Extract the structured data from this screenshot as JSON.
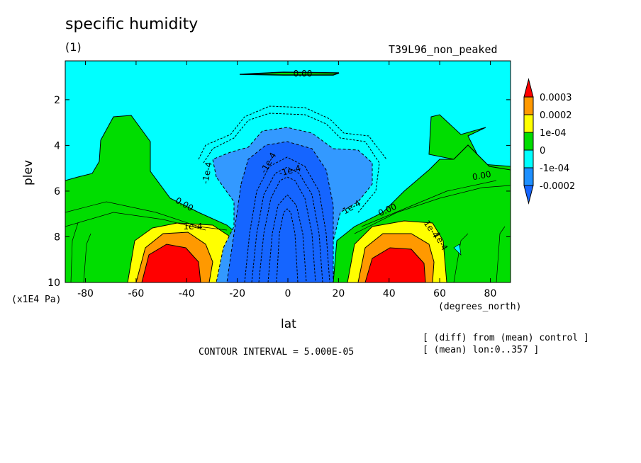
{
  "chart_data": {
    "type": "heatmap",
    "title": "specific humidity",
    "subtitle": "(1)",
    "run_label": "T39L96_non_peaked",
    "xlabel": "lat",
    "ylabel": "plev",
    "x_units": "(degrees_north)",
    "y_units": "(x1E4 Pa)",
    "xlim": [
      -88,
      88
    ],
    "ylim": [
      10,
      0.3
    ],
    "x_ticks": [
      -80,
      -60,
      -40,
      -20,
      0,
      20,
      40,
      60,
      80
    ],
    "y_ticks": [
      2,
      4,
      6,
      8,
      10
    ],
    "contour_interval": "CONTOUR INTERVAL = 5.000E-05",
    "notes": [
      "[ (diff) from (mean) control ]",
      "[ (mean) lon:0..357 ]"
    ],
    "colorbar": {
      "labels": [
        "0.0003",
        "0.0002",
        "1e-04",
        "0",
        "-1e-04",
        "-0.0002"
      ],
      "colors": [
        "#ff0000",
        "#ff9900",
        "#ffff00",
        "#00dd00",
        "#00ffff",
        "#1e90ff",
        "#1565ff"
      ]
    },
    "contour_labels": [
      "0.00",
      "0.00",
      "0.00",
      "0.00",
      "-1e-4",
      "1e-4",
      "1e-4",
      "1e-4",
      "-1e-4",
      "-1e-4",
      "1e-4"
    ]
  }
}
